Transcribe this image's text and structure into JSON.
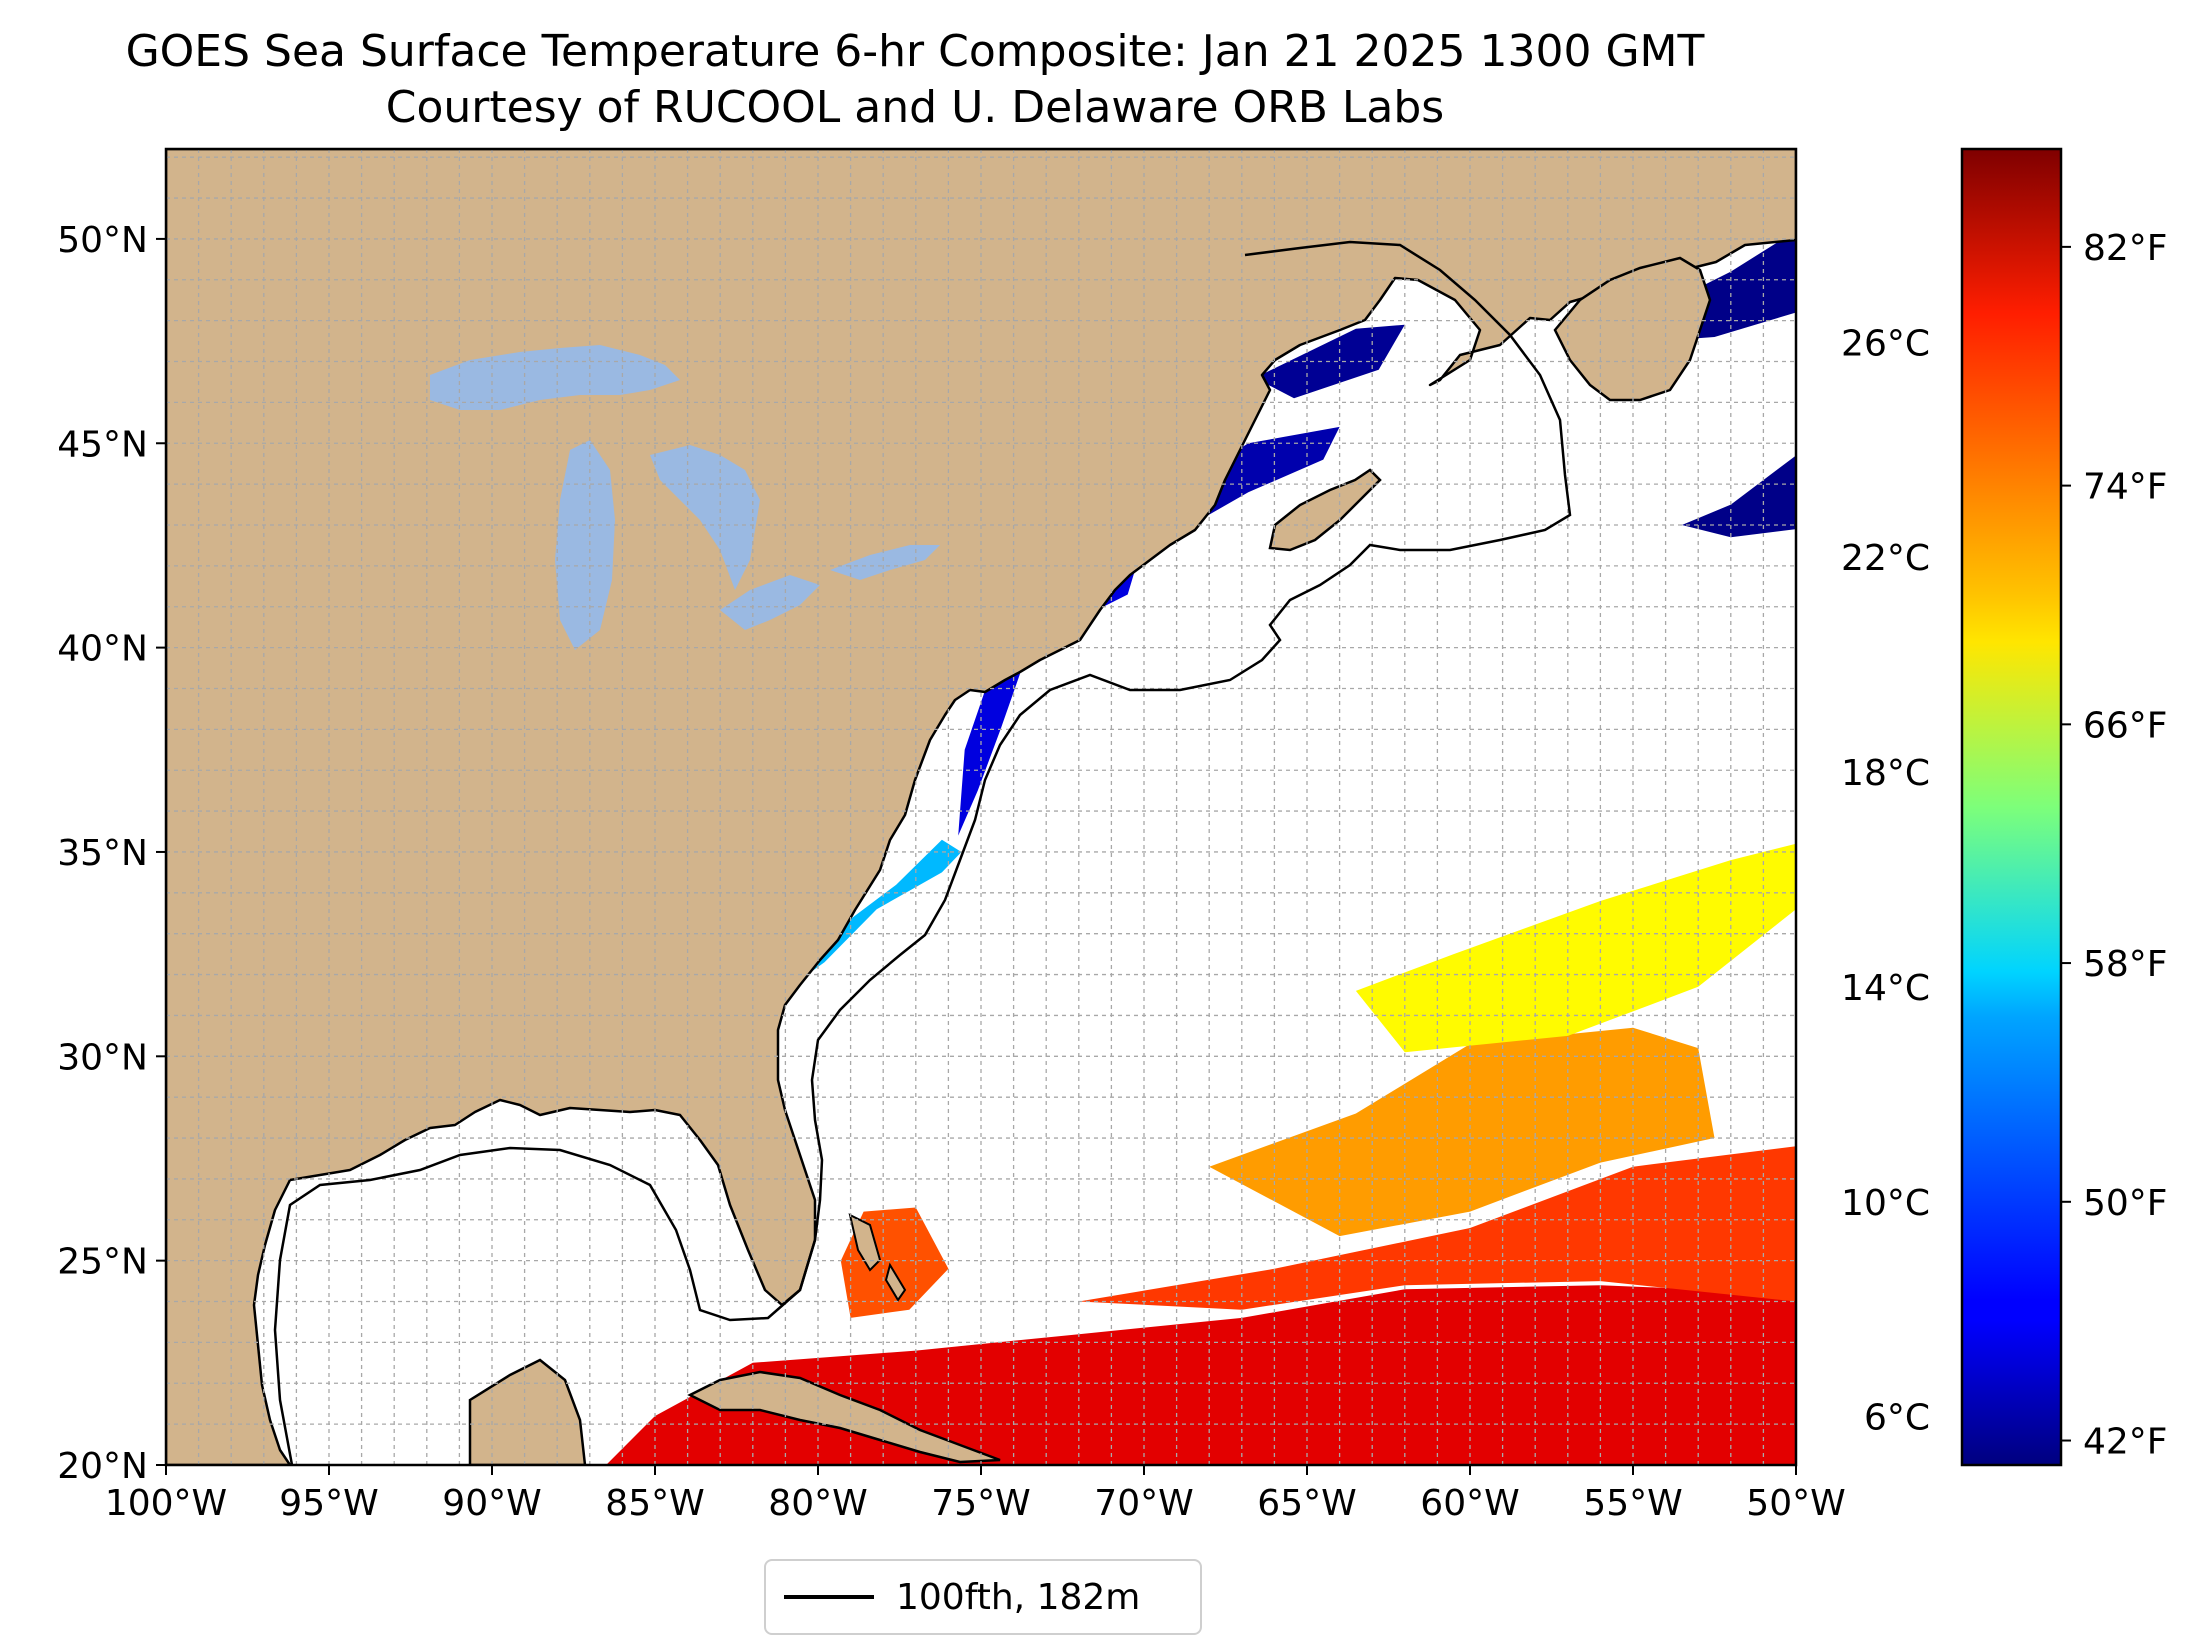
{
  "title": {
    "line1": "GOES Sea Surface Temperature 6-hr Composite: Jan 21 2025 1300 GMT",
    "line2": "Courtesy of RUCOOL and U. Delaware ORB Labs"
  },
  "map": {
    "extent": {
      "lon": [
        -100,
        -50
      ],
      "lat": [
        20,
        52.2
      ]
    },
    "lon_ticks": [
      {
        "value": -100,
        "label": "100°W"
      },
      {
        "value": -95,
        "label": "95°W"
      },
      {
        "value": -90,
        "label": "90°W"
      },
      {
        "value": -85,
        "label": "85°W"
      },
      {
        "value": -80,
        "label": "80°W"
      },
      {
        "value": -75,
        "label": "75°W"
      },
      {
        "value": -70,
        "label": "70°W"
      },
      {
        "value": -65,
        "label": "65°W"
      },
      {
        "value": -60,
        "label": "60°W"
      },
      {
        "value": -55,
        "label": "55°W"
      },
      {
        "value": -50,
        "label": "50°W"
      }
    ],
    "lat_ticks": [
      {
        "value": 20,
        "label": "20°N"
      },
      {
        "value": 25,
        "label": "25°N"
      },
      {
        "value": 30,
        "label": "30°N"
      },
      {
        "value": 35,
        "label": "35°N"
      },
      {
        "value": 40,
        "label": "40°N"
      },
      {
        "value": 45,
        "label": "45°N"
      },
      {
        "value": 50,
        "label": "50°N"
      }
    ],
    "grid": true,
    "grid_step_deg": 1,
    "colors": {
      "land": "#d2b48c",
      "lakes": "#9ab9e2",
      "ocean": "#ffffff",
      "border": "#000000"
    }
  },
  "colorbar": {
    "colormap": "jet",
    "range_c": [
      5.1,
      29.6
    ],
    "celsius_ticks": [
      {
        "value": 6,
        "label": "6°C"
      },
      {
        "value": 10,
        "label": "10°C"
      },
      {
        "value": 14,
        "label": "14°C"
      },
      {
        "value": 18,
        "label": "18°C"
      },
      {
        "value": 22,
        "label": "22°C"
      },
      {
        "value": 26,
        "label": "26°C"
      }
    ],
    "fahrenheit_ticks": [
      {
        "value": 42,
        "label": "42°F"
      },
      {
        "value": 50,
        "label": "50°F"
      },
      {
        "value": 58,
        "label": "58°F"
      },
      {
        "value": 66,
        "label": "66°F"
      },
      {
        "value": 74,
        "label": "74°F"
      },
      {
        "value": 82,
        "label": "82°F"
      }
    ]
  },
  "legend": {
    "label": "100fth, 182m",
    "color": "#000000"
  },
  "sst_fields": [
    {
      "name": "caribbean-warm",
      "temp_c": 27.2,
      "lonlat": [
        [
          -86.5,
          20
        ],
        [
          -50,
          20
        ],
        [
          -50,
          24.2
        ],
        [
          -56,
          24.4
        ],
        [
          -62,
          24.3
        ],
        [
          -67,
          23.6
        ],
        [
          -72,
          23.2
        ],
        [
          -77,
          22.8
        ],
        [
          -82,
          22.5
        ],
        [
          -85,
          21.2
        ]
      ]
    },
    {
      "name": "subtropical-orange",
      "temp_c": 25.2,
      "lonlat": [
        [
          -72,
          24
        ],
        [
          -66,
          24.8
        ],
        [
          -60,
          25.8
        ],
        [
          -55,
          27.3
        ],
        [
          -50,
          27.8
        ],
        [
          -50,
          24
        ],
        [
          -56,
          24.5
        ],
        [
          -62,
          24.4
        ],
        [
          -67,
          23.8
        ]
      ]
    },
    {
      "name": "bahamas-orange",
      "temp_c": 24.6,
      "lonlat": [
        [
          -79,
          23.6
        ],
        [
          -77.2,
          23.8
        ],
        [
          -76,
          24.8
        ],
        [
          -77,
          26.3
        ],
        [
          -78.6,
          26.2
        ],
        [
          -79.3,
          25
        ]
      ]
    },
    {
      "name": "subtropical-yellow",
      "temp_c": 22.8,
      "lonlat": [
        [
          -68,
          27.3
        ],
        [
          -63.5,
          28.6
        ],
        [
          -60,
          30.3
        ],
        [
          -55,
          30.7
        ],
        [
          -53,
          30.2
        ],
        [
          -52.5,
          28
        ],
        [
          -56,
          27.4
        ],
        [
          -60,
          26.2
        ],
        [
          -64,
          25.6
        ]
      ]
    },
    {
      "name": "subtropical-yellowgreen",
      "temp_c": 20.5,
      "lonlat": [
        [
          -63.5,
          31.6
        ],
        [
          -60.5,
          32.5
        ],
        [
          -56,
          33.8
        ],
        [
          -52,
          34.8
        ],
        [
          -50,
          35.2
        ],
        [
          -50,
          33.6
        ],
        [
          -53,
          31.7
        ],
        [
          -57,
          30.5
        ],
        [
          -62,
          30.1
        ]
      ]
    },
    {
      "name": "carolina-shelf",
      "temp_c": 12.6,
      "lonlat": [
        [
          -81.2,
          31.5
        ],
        [
          -79.8,
          32.3
        ],
        [
          -78.2,
          33.6
        ],
        [
          -76.2,
          34.5
        ],
        [
          -75.6,
          35
        ],
        [
          -76.2,
          35.3
        ],
        [
          -77.6,
          34.2
        ],
        [
          -79.6,
          33
        ],
        [
          -80.9,
          32
        ]
      ]
    },
    {
      "name": "midatlantic-shelf",
      "temp_c": 7.4,
      "lonlat": [
        [
          -75.7,
          35.4
        ],
        [
          -75.1,
          36.5
        ],
        [
          -74.4,
          38
        ],
        [
          -73.7,
          39.6
        ],
        [
          -72.5,
          40.5
        ],
        [
          -70.5,
          41.3
        ],
        [
          -70.2,
          42.1
        ],
        [
          -72.3,
          41.1
        ],
        [
          -74,
          40.6
        ],
        [
          -74.9,
          38.9
        ],
        [
          -75.5,
          37.5
        ]
      ]
    },
    {
      "name": "gulf-of-maine",
      "temp_c": 6.2,
      "lonlat": [
        [
          -70.5,
          42.1
        ],
        [
          -69,
          42.8
        ],
        [
          -66.8,
          43.8
        ],
        [
          -64.5,
          44.6
        ],
        [
          -64,
          45.4
        ],
        [
          -66.8,
          45
        ],
        [
          -69,
          43.9
        ],
        [
          -70.5,
          43
        ]
      ]
    },
    {
      "name": "gulf-st-lawrence",
      "temp_c": 5.6,
      "lonlat": [
        [
          -66.6,
          46.6
        ],
        [
          -63.5,
          47.8
        ],
        [
          -62,
          47.9
        ],
        [
          -62.8,
          46.8
        ],
        [
          -65.4,
          46.1
        ]
      ]
    },
    {
      "name": "newfoundland-cold",
      "temp_c": 5.3,
      "lonlat": [
        [
          -56,
          47.4
        ],
        [
          -54,
          48.4
        ],
        [
          -52,
          49.2
        ],
        [
          -50,
          50.2
        ],
        [
          -50,
          48.2
        ],
        [
          -52.5,
          47.6
        ]
      ]
    },
    {
      "name": "grand-banks-cold",
      "temp_c": 5.3,
      "lonlat": [
        [
          -53.5,
          43
        ],
        [
          -52,
          43.5
        ],
        [
          -50,
          44.7
        ],
        [
          -50,
          42.9
        ],
        [
          -52,
          42.7
        ]
      ]
    }
  ]
}
